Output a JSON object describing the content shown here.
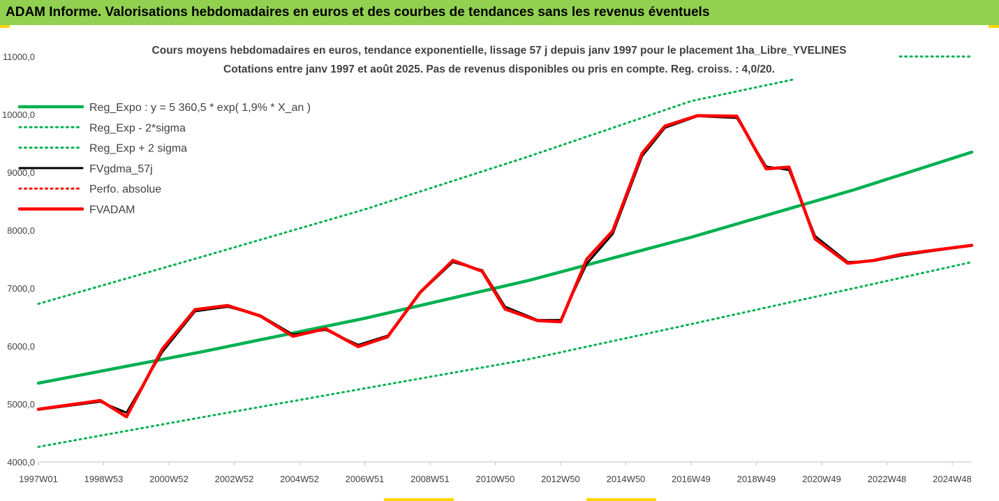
{
  "header": {
    "title": "ADAM Informe. Valorisations hebdomadaires en euros et des courbes de tendances sans les revenus éventuels"
  },
  "colors": {
    "header_bg": "#92d050",
    "trend": "#00b050",
    "fvgdma": "#000000",
    "fvadam": "#ff0000",
    "accent": "#ffd700"
  },
  "chart_data": {
    "type": "line",
    "title": "Cours moyens hebdomadaires en euros, tendance exponentielle, lissage 57 j depuis janv 1997 pour le placement 1ha_Libre_YVELINES",
    "subtitle": "Cotations entre janv 1997 et août 2025. Pas de revenus disponibles ou pris en compte. Reg. croiss. : 4,0/20.",
    "xlabel": "",
    "ylabel": "",
    "ylim": [
      4000,
      11000
    ],
    "xlim": [
      1997.0,
      2025.6
    ],
    "y_ticks": [
      "4000,0",
      "5000,0",
      "6000,0",
      "7000,0",
      "8000,0",
      "9000,0",
      "10000,0",
      "11000,0"
    ],
    "x_ticks": [
      {
        "label": "1997W01",
        "x": 1997.0
      },
      {
        "label": "1998W53",
        "x": 1999.0
      },
      {
        "label": "2000W52",
        "x": 2001.0
      },
      {
        "label": "2002W52",
        "x": 2003.0
      },
      {
        "label": "2004W52",
        "x": 2005.0
      },
      {
        "label": "2006W51",
        "x": 2007.0
      },
      {
        "label": "2008W51",
        "x": 2009.0
      },
      {
        "label": "2010W50",
        "x": 2011.0
      },
      {
        "label": "2012W50",
        "x": 2013.0
      },
      {
        "label": "2014W50",
        "x": 2015.0
      },
      {
        "label": "2016W49",
        "x": 2017.0
      },
      {
        "label": "2018W49",
        "x": 2019.0
      },
      {
        "label": "2020W49",
        "x": 2021.0
      },
      {
        "label": "2022W48",
        "x": 2023.0
      },
      {
        "label": "2024W48",
        "x": 2025.0
      }
    ],
    "legend_position": "top-left",
    "grid": false,
    "series": [
      {
        "name": "Reg_Expo : y = 5 360,5 * exp( 1,9% *  X_an )",
        "style": "solid-thick",
        "color": "#00b050",
        "x": [
          1997.0,
          2002.0,
          2007.0,
          2012.0,
          2017.0,
          2022.0,
          2025.6
        ],
        "values": [
          5360,
          5900,
          6480,
          7130,
          7880,
          8700,
          9350
        ]
      },
      {
        "name": "Reg_Exp - 2*sigma",
        "style": "dotted",
        "color": "#00b050",
        "x": [
          1997.0,
          2002.0,
          2007.0,
          2012.0,
          2017.0,
          2022.0,
          2025.6
        ],
        "values": [
          4260,
          4770,
          5270,
          5770,
          6380,
          7000,
          7450
        ]
      },
      {
        "name": "Reg_Exp + 2 sigma",
        "style": "dotted",
        "color": "#00b050",
        "x": [
          1997.0,
          2002.0,
          2007.0,
          2012.0,
          2017.0,
          2020.1
        ],
        "values": [
          6730,
          7540,
          8360,
          9270,
          10230,
          10600
        ]
      },
      {
        "name": "FVgdma_57j",
        "style": "solid",
        "color": "#000000",
        "x": [
          1997.0,
          1998.9,
          1999.7,
          2000.8,
          2001.8,
          2002.8,
          2003.8,
          2004.8,
          2005.8,
          2006.8,
          2007.7,
          2008.7,
          2009.7,
          2010.6,
          2011.3,
          2012.3,
          2013.0,
          2013.8,
          2014.6,
          2015.5,
          2016.2,
          2017.2,
          2018.4,
          2019.3,
          2020.0,
          2020.8,
          2021.8,
          2022.6,
          2023.4,
          2025.6
        ],
        "values": [
          4900,
          5040,
          4850,
          5900,
          6600,
          6680,
          6530,
          6200,
          6280,
          6020,
          6180,
          6920,
          7450,
          7310,
          6680,
          6450,
          6450,
          7420,
          7940,
          9280,
          9770,
          9970,
          9940,
          9100,
          9040,
          7900,
          7450,
          7470,
          7560,
          7740
        ]
      },
      {
        "name": "Perfo. absolue",
        "style": "dotted",
        "color": "#ff0000",
        "x": [],
        "values": []
      },
      {
        "name": "FVADAM",
        "style": "solid-thick",
        "color": "#ff0000",
        "x": [
          1997.0,
          1998.9,
          1999.7,
          2000.8,
          2001.8,
          2002.8,
          2003.8,
          2004.8,
          2005.8,
          2006.8,
          2007.7,
          2008.7,
          2009.7,
          2010.6,
          2011.3,
          2012.3,
          2013.0,
          2013.8,
          2014.6,
          2015.5,
          2016.2,
          2017.2,
          2018.4,
          2019.3,
          2020.0,
          2020.8,
          2021.8,
          2022.6,
          2023.4,
          2025.6
        ],
        "values": [
          4910,
          5060,
          4780,
          5950,
          6630,
          6700,
          6520,
          6170,
          6300,
          5990,
          6160,
          6930,
          7480,
          7290,
          6640,
          6440,
          6420,
          7500,
          7990,
          9330,
          9800,
          9980,
          9970,
          9060,
          9090,
          7850,
          7430,
          7480,
          7580,
          7740
        ]
      }
    ],
    "extra_segment": {
      "series": "Reg_Exp + 2 sigma",
      "x": [
        2023.4,
        2025.6
      ],
      "values": [
        11000,
        11000
      ]
    }
  }
}
